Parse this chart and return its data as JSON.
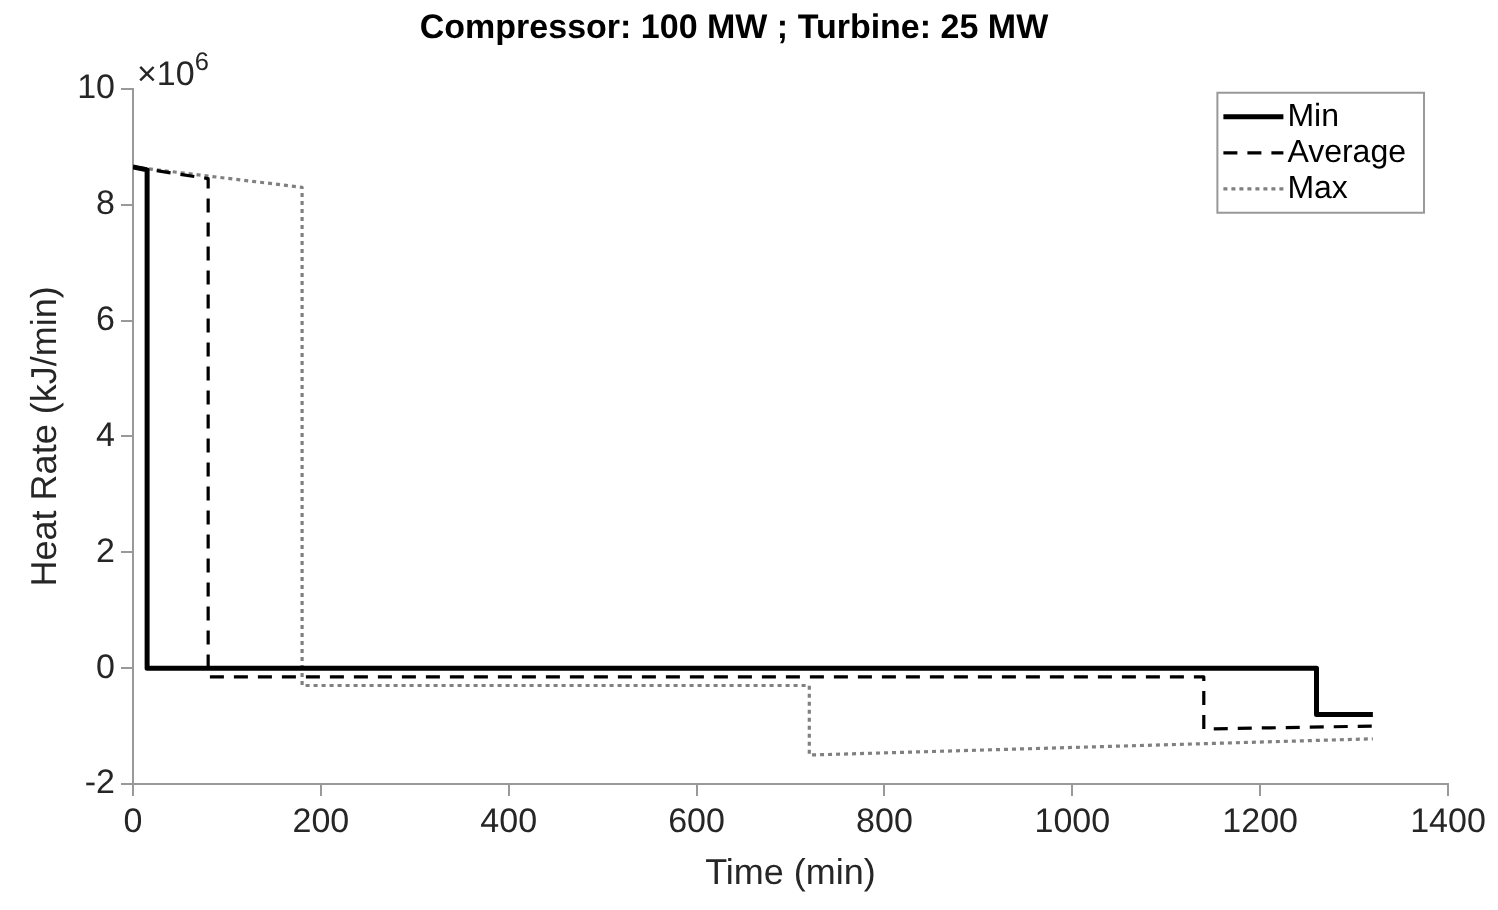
{
  "chart_data": {
    "type": "line",
    "title": "Compressor: 100 MW ; Turbine: 25 MW",
    "xlabel": "Time (min)",
    "ylabel": "Heat Rate (kJ/min)",
    "annotations": [
      "×10$^{6}$"
    ],
    "xlim": [
      0,
      1400
    ],
    "xticks": [
      0,
      200,
      400,
      600,
      800,
      1000,
      1200,
      1400
    ],
    "ylim": [
      -2,
      10
    ],
    "yticks": [
      -2,
      0,
      2,
      4,
      6,
      8,
      10
    ],
    "grid": false,
    "legend": "top right",
    "marker": "none",
    "series": [
      {
        "name": "Min",
        "color": "#000000",
        "line_style": "solid",
        "x": [
          0,
          15,
          15,
          1260,
          1260,
          1320
        ],
        "values": [
          8.65,
          8.6,
          0,
          0,
          -0.8,
          -0.8
        ]
      },
      {
        "name": "Average",
        "color": "#000000",
        "line_style": "dashed",
        "x": [
          0,
          80,
          80,
          1140,
          1140,
          1320
        ],
        "values": [
          8.65,
          8.45,
          -0.15,
          -0.15,
          -1.05,
          -1.0
        ]
      },
      {
        "name": "Max",
        "color": "#808080",
        "line_style": "dotted",
        "x": [
          0,
          180,
          180,
          720,
          720,
          1320
        ],
        "values": [
          8.65,
          8.3,
          -0.3,
          -0.3,
          -1.5,
          -1.22
        ]
      }
    ]
  }
}
